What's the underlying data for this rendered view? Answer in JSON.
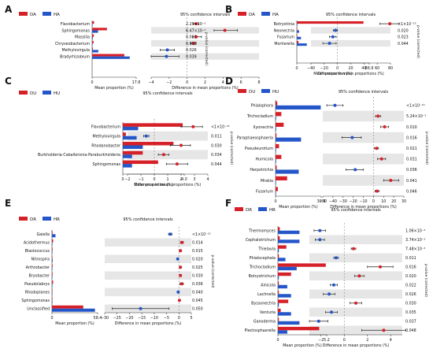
{
  "chart_data": [
    {
      "type": "bar",
      "panel": "A",
      "title": "95% confidence intervals",
      "legend": [
        "DA",
        "HA"
      ],
      "xlabel_left": "Mean proportion (%)",
      "xlabel_right": "Difference in mean proportions (%)",
      "ylabel_right": "p-value (corrected)",
      "left_xlim": [
        0,
        17.8
      ],
      "left_ticks": [
        "0",
        "17.8"
      ],
      "right_xlim": [
        -4,
        8
      ],
      "right_ticks": [
        "−4",
        "−2",
        "0",
        "2",
        "4",
        "6",
        "8"
      ],
      "categories": [
        "Flavobacterium",
        "Sphingomonas",
        "Massilia",
        "Chryseobacterium",
        "Methylovirgula",
        "Bradyrhizobium"
      ],
      "series": [
        {
          "name": "DA",
          "values": [
            0.8,
            6.0,
            0.7,
            0.6,
            0.3,
            13.0
          ]
        },
        {
          "name": "HA",
          "values": [
            0.2,
            2.4,
            0.3,
            0.2,
            2.5,
            15.2
          ]
        }
      ],
      "diff": [
        1.0,
        4.2,
        1.0,
        0.7,
        -2.2,
        -2.3
      ],
      "ci_low": [
        0.7,
        3.0,
        0.6,
        0.4,
        -3.0,
        -4.0
      ],
      "ci_high": [
        1.3,
        5.6,
        1.6,
        1.0,
        -1.4,
        -0.9
      ],
      "pvalues": [
        "2.29×10⁻³",
        "6.47×10⁻³",
        "0.013",
        "0.018",
        "0.026",
        "0.039"
      ]
    },
    {
      "type": "bar",
      "panel": "B",
      "title": "95% confidence intervals",
      "legend": [
        "DA",
        "HA"
      ],
      "xlabel_left": "Mean proportion (%)",
      "xlabel_right": "Difference in mean proportions (%)",
      "ylabel_right": "p-value (corrected)",
      "left_xlim": [
        0,
        86.9
      ],
      "left_ticks": [
        "0",
        "86.9"
      ],
      "right_xlim": [
        -40,
        80
      ],
      "right_ticks": [
        "−40",
        "−20",
        "0",
        "20",
        "40",
        "60",
        "80"
      ],
      "categories": [
        "Botryotinia",
        "Neonectria",
        "Fusarium",
        "Mortierella"
      ],
      "series": [
        {
          "name": "DA",
          "values": [
            80.0,
            0.3,
            0.6,
            2.0
          ]
        },
        {
          "name": "HA",
          "values": [
            0.3,
            2.8,
            5.0,
            12.0
          ]
        }
      ],
      "diff": [
        79.0,
        -3.0,
        -7.0,
        -12.0
      ],
      "ci_low": [
        64.0,
        -6.0,
        -12.0,
        -22.0
      ],
      "ci_high": [
        93.0,
        0.0,
        -2.0,
        -2.0
      ],
      "pvalues": [
        "<1×10⁻¹⁵",
        "0.020",
        "0.023",
        "0.044"
      ]
    },
    {
      "type": "bar",
      "panel": "C",
      "title": "95% confidence intervals",
      "legend": [
        "DU",
        "HU"
      ],
      "xlabel_left": "Mean proportion (%)",
      "xlabel_right": "Difference in mean proportions (%)",
      "ylabel_right": "p-value (corrected)",
      "left_xlim": [
        0,
        4.0
      ],
      "left_ticks": [
        "0",
        "4.0"
      ],
      "right_xlim": [
        -2,
        4
      ],
      "right_ticks": [
        "−2",
        "−1",
        "0",
        "1",
        "2",
        "3",
        "4"
      ],
      "categories": [
        "Flavobacterium",
        "Methylovirgula",
        "Rhodanobacter",
        "Burkholderia-Caballeronia-Paraburkholderia",
        "Sphingomonas"
      ],
      "series": [
        {
          "name": "DU",
          "values": [
            3.9,
            0.2,
            3.3,
            1.3,
            2.3
          ]
        },
        {
          "name": "HU",
          "values": [
            1.0,
            0.9,
            1.3,
            0.6,
            0.6
          ]
        }
      ],
      "diff": [
        2.9,
        -0.6,
        2.0,
        0.7,
        1.7
      ],
      "ci_low": [
        2.0,
        -0.8,
        1.2,
        0.3,
        0.9
      ],
      "ci_high": [
        3.6,
        -0.4,
        2.7,
        1.1,
        2.5
      ],
      "pvalues": [
        "<1×10⁻¹⁵",
        "0.011",
        "0.030",
        "0.034",
        "0.044"
      ]
    },
    {
      "type": "bar",
      "panel": "D",
      "title": "95% confidence intervals",
      "legend": [
        "DU",
        "HU"
      ],
      "xlabel_left": "Mean proportion (%)",
      "xlabel_right": "Difference in mean proportions (%)",
      "ylabel_right": "p-value (corrected)",
      "left_xlim": [
        0,
        39.4
      ],
      "left_ticks": [
        "0",
        "39.4"
      ],
      "right_xlim": [
        -50,
        30
      ],
      "right_ticks": [
        "−50",
        "−40",
        "−30",
        "−20",
        "−10",
        "0",
        "10",
        "20",
        "30"
      ],
      "categories": [
        "Phialophora",
        "Trichocladium",
        "Ilyonectria",
        "Paraphaeosphaeria",
        "Pseudeurotium",
        "Humicola",
        "Herpotrichia",
        "Mrakia",
        "Fusarium"
      ],
      "series": [
        {
          "name": "DU",
          "values": [
            1.5,
            5.0,
            7.0,
            0.8,
            3.0,
            5.0,
            1.0,
            10.0,
            2.0
          ]
        },
        {
          "name": "HU",
          "values": [
            39.0,
            0.5,
            0.5,
            22.0,
            0.2,
            0.5,
            20.0,
            0.2,
            0.2
          ]
        }
      ],
      "diff": [
        -38.0,
        4.5,
        11.0,
        -21.0,
        3.0,
        8.0,
        -18.0,
        17.0,
        3.5
      ],
      "ci_low": [
        -46.0,
        2.0,
        7.0,
        -31.0,
        1.0,
        4.0,
        -27.0,
        10.0,
        1.5
      ],
      "ci_high": [
        -30.0,
        7.0,
        15.0,
        -12.0,
        5.0,
        12.0,
        -10.0,
        25.0,
        5.5
      ],
      "pvalues": [
        "<1×10⁻¹⁵",
        "5.24×10⁻³",
        "0.010",
        "0.016",
        "0.021",
        "0.031",
        "0.036",
        "0.041",
        "0.046"
      ]
    },
    {
      "type": "bar",
      "panel": "E",
      "title": "95% confidence intervals",
      "legend": [
        "DR",
        "HR"
      ],
      "xlabel_left": "Mean proportion (%)",
      "xlabel_right": "Difference in mean proportions (%)",
      "ylabel_right": "p-value (corrected)",
      "left_xlim": [
        0,
        58.4
      ],
      "left_ticks": [
        "0",
        "58.4"
      ],
      "right_xlim": [
        -30,
        5
      ],
      "right_ticks": [
        "−30",
        "−25",
        "−20",
        "−15",
        "−10",
        "−5",
        "0",
        "5"
      ],
      "categories": [
        "Gaiella",
        "Acidothermus",
        "Blastococcus",
        "Nitrospira",
        "Arthrobacter",
        "Bryobacter",
        "Pseudolabrys",
        "Rhodoplanes",
        "Sphingomonas",
        "Unclassified"
      ],
      "series": [
        {
          "name": "DR",
          "values": [
            0.8,
            1.5,
            0.8,
            0.4,
            0.8,
            0.8,
            1.5,
            0.3,
            0.4,
            40.0
          ]
        },
        {
          "name": "HR",
          "values": [
            4.5,
            0.3,
            0.2,
            0.9,
            0.2,
            0.2,
            0.4,
            0.6,
            0.2,
            55.0
          ]
        }
      ],
      "diff": [
        -3.5,
        1.2,
        0.6,
        -0.5,
        0.6,
        0.6,
        1.1,
        -0.3,
        0.2,
        -15.5
      ],
      "ci_low": [
        -4.2,
        0.6,
        0.2,
        -0.8,
        0.2,
        0.2,
        0.4,
        -0.5,
        0.05,
        -27.0
      ],
      "ci_high": [
        -2.8,
        1.8,
        1.0,
        -0.2,
        1.0,
        1.0,
        1.8,
        -0.1,
        0.35,
        -4.0
      ],
      "pvalues": [
        "<1×10⁻¹⁵",
        "0.014",
        "0.015",
        "0.020",
        "0.025",
        "0.030",
        "0.036",
        "0.040",
        "0.045",
        "0.050"
      ]
    },
    {
      "type": "bar",
      "panel": "F",
      "title": "95% confidence intervals",
      "legend": [
        "DR",
        "HR"
      ],
      "xlabel_left": "Mean proportion (%)",
      "xlabel_right": "Difference in mean proportions (%)",
      "ylabel_right": "p-value (corrected)",
      "left_xlim": [
        0,
        5.2
      ],
      "left_ticks": [
        "0",
        "5.2"
      ],
      "right_xlim": [
        -3,
        5
      ],
      "right_ticks": [
        "−2",
        "0",
        "2",
        "4"
      ],
      "categories": [
        "Thermomyces",
        "Cephalotrichum",
        "Thielavia",
        "Phialocephala",
        "Trichocladium",
        "Botryotrichum",
        "Alnicola",
        "Lachnella",
        "Byssonectria",
        "Venturia",
        "Ganoderma",
        "Plectosphaerella"
      ],
      "series": [
        {
          "name": "DR",
          "values": [
            0.2,
            0.2,
            0.9,
            0.1,
            5.1,
            1.4,
            0.1,
            0.1,
            1.1,
            0.3,
            0.1,
            4.4
          ]
        },
        {
          "name": "HR",
          "values": [
            2.3,
            2.3,
            0.1,
            0.8,
            2.0,
            0.1,
            1.0,
            1.4,
            0.1,
            1.4,
            2.3,
            1.0
          ]
        }
      ],
      "diff": [
        -2.1,
        -2.1,
        0.8,
        -0.7,
        3.1,
        1.3,
        -0.9,
        -1.3,
        1.0,
        -1.1,
        -2.2,
        3.4
      ],
      "ci_low": [
        -2.6,
        -2.5,
        0.6,
        -0.9,
        2.0,
        0.9,
        -1.2,
        -1.8,
        0.5,
        -1.6,
        -3.0,
        1.5
      ],
      "ci_high": [
        -1.6,
        -1.7,
        1.0,
        -0.5,
        4.2,
        1.7,
        -0.6,
        -0.8,
        1.5,
        -0.6,
        -1.4,
        5.3
      ],
      "pvalues": [
        "1.06×10⁻³",
        "3.74×10⁻³",
        "7.48×10⁻³",
        "0.011",
        "0.016",
        "0.020",
        "0.022",
        "0.026",
        "0.030",
        "0.035",
        "0.037",
        "0.048"
      ]
    }
  ],
  "colors": {
    "d_series": "#d62028",
    "h_series": "#2456c9",
    "stripe": "#e6e6e6",
    "ci_line": "#222222"
  },
  "icons": [
    "legend-swatch-red-icon",
    "legend-swatch-blue-icon"
  ]
}
